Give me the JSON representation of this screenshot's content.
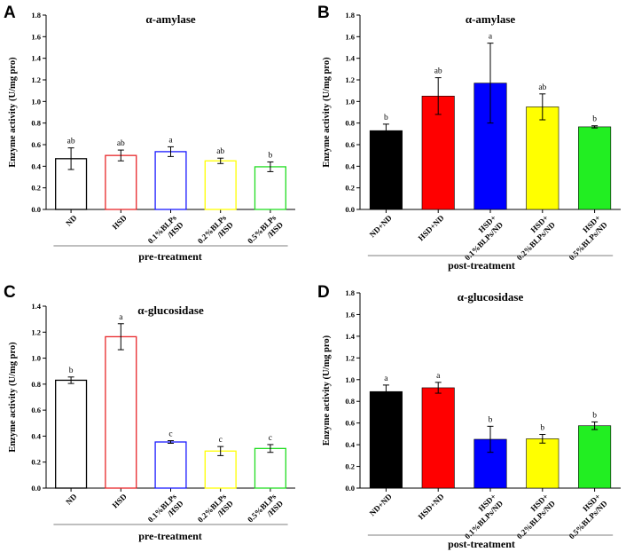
{
  "chart_data": [
    {
      "panel": "A",
      "type": "bar",
      "title": "α-amylase",
      "ylabel": "Enzyme activity (U/mg pro)",
      "xlabel": "pre-treatment",
      "ylim": [
        0,
        1.8
      ],
      "yticks": [
        "0.0",
        "0.2",
        "0.4",
        "0.6",
        "0.8",
        "1.0",
        "1.2",
        "1.4",
        "1.6",
        "1.8"
      ],
      "filled": false,
      "categories": [
        [
          "ND"
        ],
        [
          "HSD"
        ],
        [
          "0.1%BLPs",
          "/HSD"
        ],
        [
          "0.2%BLPs",
          "/HSD"
        ],
        [
          "0.5%BLPs",
          "/HSD"
        ]
      ],
      "values": [
        0.47,
        0.5,
        0.535,
        0.45,
        0.395
      ],
      "errors": [
        0.1,
        0.05,
        0.045,
        0.025,
        0.045
      ],
      "letters": [
        "ab",
        "ab",
        "a",
        "ab",
        "b"
      ],
      "colors": [
        "#000000",
        "#e8272a",
        "#1a1aff",
        "#ffff00",
        "#22dd22"
      ]
    },
    {
      "panel": "B",
      "type": "bar",
      "title": "α-amylase",
      "ylabel": "Enzyme activity (U/mg pro)",
      "xlabel": "post-treatment",
      "ylim": [
        0,
        1.8
      ],
      "yticks": [
        "0.0",
        "0.2",
        "0.4",
        "0.6",
        "0.8",
        "1.0",
        "1.2",
        "1.4",
        "1.6",
        "1.8"
      ],
      "filled": true,
      "categories": [
        [
          "ND+ND"
        ],
        [
          "HSD+ND"
        ],
        [
          "HSD+",
          "0.1%BLPs/ND"
        ],
        [
          "HSD+",
          "0.2%BLPs/ND"
        ],
        [
          "HSD+",
          "0.5%BLPs/ND"
        ]
      ],
      "values": [
        0.73,
        1.05,
        1.17,
        0.95,
        0.765
      ],
      "errors": [
        0.06,
        0.17,
        0.37,
        0.12,
        0.01
      ],
      "letters": [
        "b",
        "ab",
        "a",
        "ab",
        "b"
      ],
      "colors": [
        "#000000",
        "#ff0000",
        "#0000ff",
        "#ffff00",
        "#22ee22"
      ]
    },
    {
      "panel": "C",
      "type": "bar",
      "title": "α-glucosidase",
      "ylabel": "Enzyme activity (U/mg pro)",
      "xlabel": "pre-treatment",
      "ylim": [
        0,
        1.4
      ],
      "yticks": [
        "0.0",
        "0.2",
        "0.4",
        "0.6",
        "0.8",
        "1.0",
        "1.2",
        "1.4"
      ],
      "filled": false,
      "categories": [
        [
          "ND"
        ],
        [
          "HSD"
        ],
        [
          "0.1%BLPs",
          "/HSD"
        ],
        [
          "0.2%BLPs",
          "/HSD"
        ],
        [
          "0.5%BLPs",
          "/HSD"
        ]
      ],
      "values": [
        0.83,
        1.165,
        0.355,
        0.285,
        0.305
      ],
      "errors": [
        0.025,
        0.1,
        0.01,
        0.035,
        0.03
      ],
      "letters": [
        "b",
        "a",
        "c",
        "c",
        "c"
      ],
      "colors": [
        "#000000",
        "#e8272a",
        "#1a1aff",
        "#ffff00",
        "#22dd22"
      ]
    },
    {
      "panel": "D",
      "type": "bar",
      "title": "α-glucosidase",
      "ylabel": "Enzyme activity (U/mg pro)",
      "xlabel": "post-treatment",
      "ylim": [
        0,
        1.8
      ],
      "yticks": [
        "0.0",
        "0.2",
        "0.4",
        "0.6",
        "0.8",
        "1.0",
        "1.2",
        "1.4",
        "1.6",
        "1.8"
      ],
      "filled": true,
      "categories": [
        [
          "ND+ND"
        ],
        [
          "HSD+ND"
        ],
        [
          "HSD+",
          "0.1%BLPs/ND"
        ],
        [
          "HSD+",
          "0.2%BLPs/ND"
        ],
        [
          "HSD+",
          "0.5%BLPs/ND"
        ]
      ],
      "values": [
        0.89,
        0.925,
        0.45,
        0.455,
        0.575
      ],
      "errors": [
        0.06,
        0.05,
        0.12,
        0.04,
        0.035
      ],
      "letters": [
        "a",
        "a",
        "b",
        "b",
        "b"
      ],
      "colors": [
        "#000000",
        "#ff0000",
        "#0000ff",
        "#ffff00",
        "#22ee22"
      ]
    }
  ]
}
